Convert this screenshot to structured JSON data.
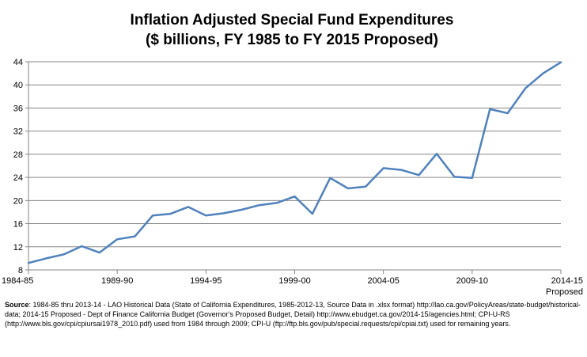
{
  "chart_data": {
    "type": "line",
    "title_line1": "Inflation Adjusted Special Fund Expenditures",
    "title_line2": "($ billions,  FY 1985 to FY 2015 Proposed)",
    "xlabel": "",
    "ylabel": "",
    "ylim": [
      8,
      44
    ],
    "y_ticks": [
      8,
      12,
      16,
      20,
      24,
      28,
      32,
      36,
      40,
      44
    ],
    "grid": "horizontal",
    "line_color": "#4f81bd",
    "x_tick_labels": [
      {
        "index": 0,
        "label": "1984-85"
      },
      {
        "index": 5,
        "label": "1989-90"
      },
      {
        "index": 10,
        "label": "1994-95"
      },
      {
        "index": 15,
        "label": "1999-00"
      },
      {
        "index": 20,
        "label": "2004-05"
      },
      {
        "index": 25,
        "label": "2009-10"
      },
      {
        "index": 30,
        "label": "2014-15"
      }
    ],
    "x_last_sublabel": "Proposed",
    "x": [
      "1984-85",
      "1985-86",
      "1986-87",
      "1987-88",
      "1988-89",
      "1989-90",
      "1990-91",
      "1991-92",
      "1992-93",
      "1993-94",
      "1994-95",
      "1995-96",
      "1996-97",
      "1997-98",
      "1998-99",
      "1999-00",
      "2000-01",
      "2001-02",
      "2002-03",
      "2003-04",
      "2004-05",
      "2005-06",
      "2006-07",
      "2007-08",
      "2008-09",
      "2009-10",
      "2010-11",
      "2011-12",
      "2012-13",
      "2013-14",
      "2014-15"
    ],
    "values": [
      9.2,
      10.0,
      10.7,
      12.1,
      11.0,
      13.3,
      13.8,
      17.4,
      17.7,
      18.9,
      17.4,
      17.8,
      18.4,
      19.2,
      19.6,
      20.7,
      17.7,
      23.9,
      22.1,
      22.4,
      25.6,
      25.3,
      24.4,
      28.1,
      24.1,
      23.9,
      35.8,
      35.1,
      39.4,
      42.0,
      43.9
    ]
  },
  "source": {
    "label": "Source",
    "text": ":  1984-85 thru 2013-14 - LAO Historical Data (State of California Expenditures, 1985-2012-13, Source Data in .xlsx format) http://lao.ca.gov/PolicyAreas/state-budget/historical-data; 2014-15 Proposed - Dept of Finance California Budget (Governor's Proposed Budget, Detail) http://www.ebudget.ca.gov/2014-15/agencies.html; CPI-U-RS (http://www.bls.gov/cpi/cpiursai1978_2010.pdf) used from 1984 through 2009; CPI-U (ftp://ftp.bls.gov/pub/special.requests/cpi/cpiai.txt) used for remaining years."
  }
}
